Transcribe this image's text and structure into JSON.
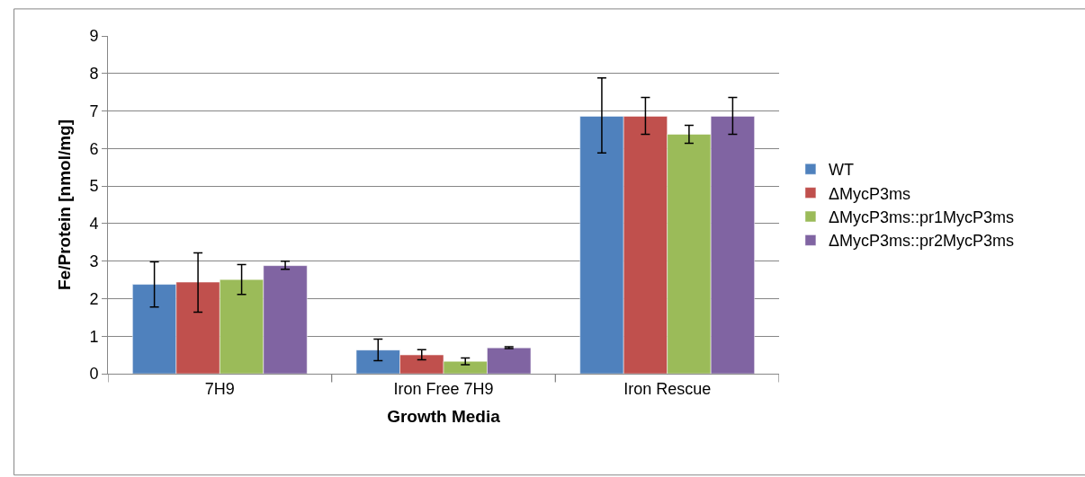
{
  "chart_data": {
    "type": "bar",
    "xlabel": "Growth Media",
    "ylabel": "Fe/Protein [nmol/mg]",
    "categories": [
      "7H9",
      "Iron Free 7H9",
      "Iron Rescue"
    ],
    "series": [
      {
        "name": "WT",
        "color": "#4f81bd",
        "values": [
          2.38,
          0.63,
          6.86
        ],
        "errors": [
          [
            1.78,
            2.98
          ],
          [
            0.35,
            0.92
          ],
          [
            5.88,
            7.88
          ]
        ]
      },
      {
        "name": "ΔMycP3ms",
        "color": "#c0504d",
        "values": [
          2.44,
          0.5,
          6.86
        ],
        "errors": [
          [
            1.64,
            3.22
          ],
          [
            0.37,
            0.64
          ],
          [
            6.38,
            7.36
          ]
        ]
      },
      {
        "name": "ΔMycP3ms::pr1MycP3ms",
        "color": "#9bbb59",
        "values": [
          2.51,
          0.33,
          6.38
        ],
        "errors": [
          [
            2.11,
            2.91
          ],
          [
            0.24,
            0.42
          ],
          [
            6.14,
            6.62
          ]
        ]
      },
      {
        "name": "ΔMycP3ms::pr2MycP3ms",
        "color": "#8064a2",
        "values": [
          2.88,
          0.69,
          6.86
        ],
        "errors": [
          [
            2.78,
            3.0
          ],
          [
            0.67,
            0.72
          ],
          [
            6.38,
            7.36
          ]
        ]
      }
    ],
    "ylim": [
      0,
      9
    ],
    "yticks": [
      0,
      1,
      2,
      3,
      4,
      5,
      6,
      7,
      8,
      9
    ],
    "grid": "y",
    "legend": "right"
  }
}
